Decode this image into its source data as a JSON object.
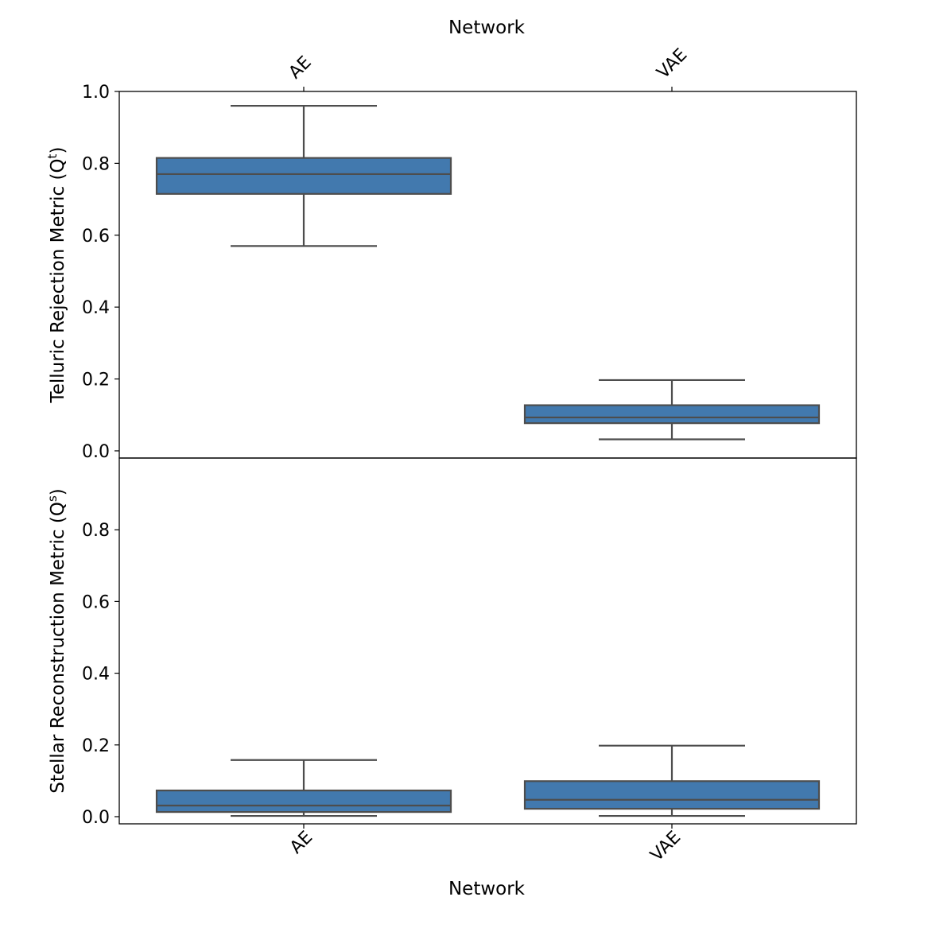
{
  "chart_data": {
    "type": "box",
    "x_label_top": "Network",
    "x_label_bottom": "Network",
    "categories": [
      "AE",
      "VAE"
    ],
    "box_color": "#4279AE",
    "line_color": "#4D4D4D",
    "panels": [
      {
        "ylabel_text": "Telluric Rejection Metric (Q",
        "ylabel_sup": "t",
        "ylabel_close": ")",
        "ylim": [
          -0.02,
          1.0
        ],
        "yticks": [
          0.0,
          0.2,
          0.4,
          0.6,
          0.8,
          1.0
        ],
        "ytick_labels": [
          "0.0",
          "0.2",
          "0.4",
          "0.6",
          "0.8",
          "1.0"
        ],
        "boxes": [
          {
            "category": "AE",
            "whisker_low": 0.57,
            "q1": 0.715,
            "median": 0.77,
            "q3": 0.815,
            "whisker_high": 0.96
          },
          {
            "category": "VAE",
            "whisker_low": 0.032,
            "q1": 0.077,
            "median": 0.093,
            "q3": 0.127,
            "whisker_high": 0.197
          }
        ]
      },
      {
        "ylabel_text": "Stellar Reconstruction Metric (Q",
        "ylabel_sup": "s",
        "ylabel_close": ")",
        "ylim": [
          -0.02,
          1.0
        ],
        "yticks": [
          0.0,
          0.2,
          0.4,
          0.6,
          0.8
        ],
        "ytick_labels": [
          "0.0",
          "0.2",
          "0.4",
          "0.6",
          "0.8"
        ],
        "boxes": [
          {
            "category": "AE",
            "whisker_low": 0.002,
            "q1": 0.013,
            "median": 0.031,
            "q3": 0.073,
            "whisker_high": 0.158
          },
          {
            "category": "VAE",
            "whisker_low": 0.002,
            "q1": 0.022,
            "median": 0.047,
            "q3": 0.099,
            "whisker_high": 0.198
          }
        ]
      }
    ]
  }
}
